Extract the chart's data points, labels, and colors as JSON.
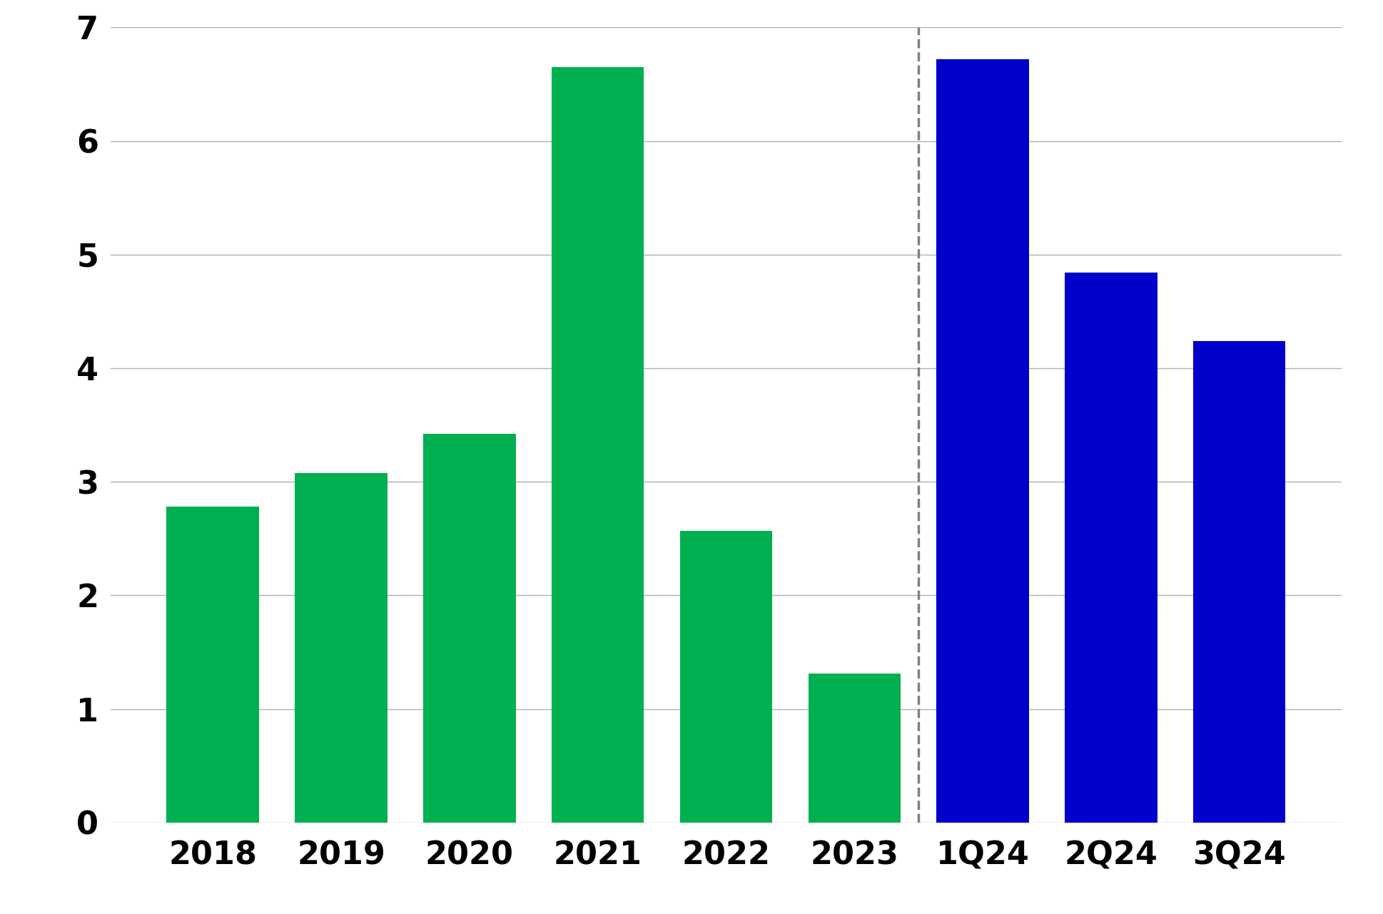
{
  "categories": [
    "2018",
    "2019",
    "2020",
    "2021",
    "2022",
    "2023",
    "1Q24",
    "2Q24",
    "3Q24"
  ],
  "values": [
    2.78,
    3.08,
    3.42,
    6.65,
    2.57,
    1.31,
    6.72,
    4.84,
    4.24
  ],
  "bar_colors": [
    "#00b050",
    "#00b050",
    "#00b050",
    "#00b050",
    "#00b050",
    "#00b050",
    "#0000cc",
    "#0000cc",
    "#0000cc"
  ],
  "dashed_line_x": 5.5,
  "ylim": [
    0,
    7
  ],
  "yticks": [
    0,
    1,
    2,
    3,
    4,
    5,
    6,
    7
  ],
  "background_color": "#ffffff",
  "grid_color": "#b0b0b0",
  "tick_fontsize": 32,
  "bar_width": 0.72
}
